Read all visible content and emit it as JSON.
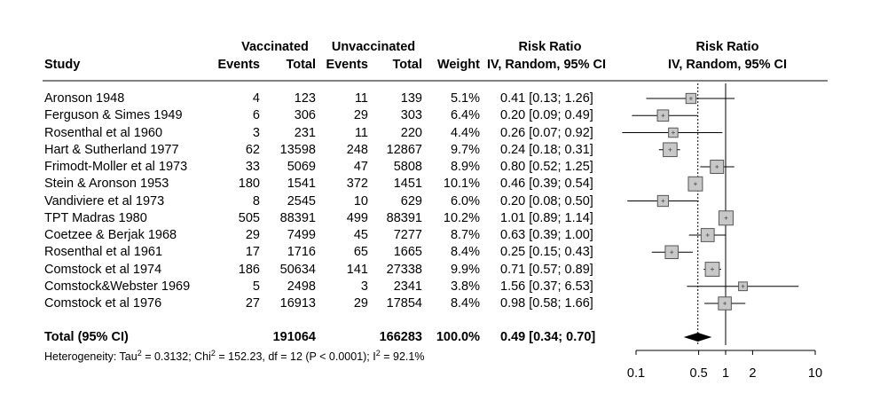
{
  "header": {
    "vaccinated": "Vaccinated",
    "unvaccinated": "Unvaccinated",
    "study": "Study",
    "events_v": "Events",
    "total_v": "Total",
    "events_u": "Events",
    "total_u": "Total",
    "weight": "Weight",
    "rr_title": "Risk Ratio",
    "rr_method": "IV, Random, 95% CI",
    "plot_title": "Risk Ratio",
    "plot_method": "IV, Random, 95% CI"
  },
  "rows": [
    {
      "study": "Aronson 1948",
      "ev": "4",
      "tv": "123",
      "eu": "11",
      "tu": "139",
      "w": "5.1%",
      "ci": "0.41 [0.13; 1.26]"
    },
    {
      "study": "Ferguson & Simes 1949",
      "ev": "6",
      "tv": "306",
      "eu": "29",
      "tu": "303",
      "w": "6.4%",
      "ci": "0.20 [0.09; 0.49]"
    },
    {
      "study": "Rosenthal et al 1960",
      "ev": "3",
      "tv": "231",
      "eu": "11",
      "tu": "220",
      "w": "4.4%",
      "ci": "0.26 [0.07; 0.92]"
    },
    {
      "study": "Hart & Sutherland 1977",
      "ev": "62",
      "tv": "13598",
      "eu": "248",
      "tu": "12867",
      "w": "9.7%",
      "ci": "0.24 [0.18; 0.31]"
    },
    {
      "study": "Frimodt-Moller et al 1973",
      "ev": "33",
      "tv": "5069",
      "eu": "47",
      "tu": "5808",
      "w": "8.9%",
      "ci": "0.80 [0.52; 1.25]"
    },
    {
      "study": "Stein & Aronson 1953",
      "ev": "180",
      "tv": "1541",
      "eu": "372",
      "tu": "1451",
      "w": "10.1%",
      "ci": "0.46 [0.39; 0.54]"
    },
    {
      "study": "Vandiviere et al 1973",
      "ev": "8",
      "tv": "2545",
      "eu": "10",
      "tu": "629",
      "w": "6.0%",
      "ci": "0.20 [0.08; 0.50]"
    },
    {
      "study": "TPT Madras 1980",
      "ev": "505",
      "tv": "88391",
      "eu": "499",
      "tu": "88391",
      "w": "10.2%",
      "ci": "1.01 [0.89; 1.14]"
    },
    {
      "study": "Coetzee & Berjak 1968",
      "ev": "29",
      "tv": "7499",
      "eu": "45",
      "tu": "7277",
      "w": "8.7%",
      "ci": "0.63 [0.39; 1.00]"
    },
    {
      "study": "Rosenthal et al 1961",
      "ev": "17",
      "tv": "1716",
      "eu": "65",
      "tu": "1665",
      "w": "8.4%",
      "ci": "0.25 [0.15; 0.43]"
    },
    {
      "study": "Comstock et al 1974",
      "ev": "186",
      "tv": "50634",
      "eu": "141",
      "tu": "27338",
      "w": "9.9%",
      "ci": "0.71 [0.57; 0.89]"
    },
    {
      "study": "Comstock&Webster 1969",
      "ev": "5",
      "tv": "2498",
      "eu": "3",
      "tu": "2341",
      "w": "3.8%",
      "ci": "1.56 [0.37; 6.53]"
    },
    {
      "study": "Comstock et al 1976",
      "ev": "27",
      "tv": "16913",
      "eu": "29",
      "tu": "17854",
      "w": "8.4%",
      "ci": "0.98 [0.58; 1.66]"
    }
  ],
  "total": {
    "label": "Total (95% CI)",
    "tv": "191064",
    "tu": "166283",
    "w": "100.0%",
    "ci": "0.49 [0.34; 0.70]"
  },
  "heterogeneity": {
    "prefix": "Heterogeneity: Tau",
    "sup1": "2",
    "part2": " = 0.3132; Chi",
    "sup2": "2",
    "part3": " = 152.23, df = 12 (P < 0.0001); I",
    "sup3": "2",
    "part4": " = 92.1%"
  },
  "chart_data": {
    "type": "scatter",
    "subtype": "forest-plot",
    "title": "Risk Ratio",
    "subtitle": "IV, Random, 95% CI",
    "x_scale": "log",
    "xlim": [
      0.1,
      10
    ],
    "x_ticks": [
      0.1,
      0.5,
      1,
      2,
      10
    ],
    "x_tick_labels": [
      "0.1",
      "0.5",
      "1",
      "2",
      "10"
    ],
    "reference_line": 1,
    "pooled_line": 0.49,
    "studies": [
      {
        "est": 0.41,
        "lo": 0.13,
        "hi": 1.26,
        "weight": 5.1
      },
      {
        "est": 0.2,
        "lo": 0.09,
        "hi": 0.49,
        "weight": 6.4
      },
      {
        "est": 0.26,
        "lo": 0.07,
        "hi": 0.92,
        "weight": 4.4
      },
      {
        "est": 0.24,
        "lo": 0.18,
        "hi": 0.31,
        "weight": 9.7
      },
      {
        "est": 0.8,
        "lo": 0.52,
        "hi": 1.25,
        "weight": 8.9
      },
      {
        "est": 0.46,
        "lo": 0.39,
        "hi": 0.54,
        "weight": 10.1
      },
      {
        "est": 0.2,
        "lo": 0.08,
        "hi": 0.5,
        "weight": 6.0
      },
      {
        "est": 1.01,
        "lo": 0.89,
        "hi": 1.14,
        "weight": 10.2
      },
      {
        "est": 0.63,
        "lo": 0.39,
        "hi": 1.0,
        "weight": 8.7
      },
      {
        "est": 0.25,
        "lo": 0.15,
        "hi": 0.43,
        "weight": 8.4
      },
      {
        "est": 0.71,
        "lo": 0.57,
        "hi": 0.89,
        "weight": 9.9
      },
      {
        "est": 1.56,
        "lo": 0.37,
        "hi": 6.53,
        "weight": 3.8
      },
      {
        "est": 0.98,
        "lo": 0.58,
        "hi": 1.66,
        "weight": 8.4
      }
    ],
    "pooled": {
      "est": 0.49,
      "lo": 0.34,
      "hi": 0.7
    },
    "colors": {
      "box_fill": "#c8c8c8",
      "box_stroke": "#555555",
      "diamond": "#000000"
    }
  }
}
